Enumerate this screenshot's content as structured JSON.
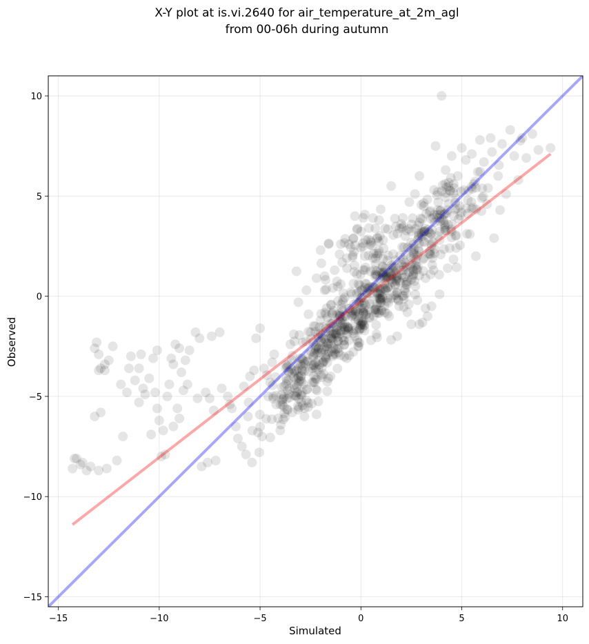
{
  "chart_data": {
    "type": "scatter",
    "title_line1": "X-Y plot at is.vi.2640 for air_temperature_at_2m_agl",
    "title_line2": "from 00-06h during autumn",
    "xlabel": "Simulated",
    "ylabel": "Observed",
    "xlim": [
      -15.5,
      11.0
    ],
    "ylim": [
      -15.5,
      11.0
    ],
    "xticks": [
      -15,
      -10,
      -5,
      0,
      5,
      10
    ],
    "yticks": [
      -15,
      -10,
      -5,
      0,
      5,
      10
    ],
    "xtick_labels": [
      "−15",
      "−10",
      "−5",
      "0",
      "5",
      "10"
    ],
    "ytick_labels": [
      "−15",
      "−10",
      "−5",
      "0",
      "5",
      "10"
    ],
    "grid": true,
    "colors": {
      "points": "#000000",
      "identity_line": "#0000ff",
      "fit_line": "#ff0000"
    },
    "identity_line": {
      "x": [
        -15.5,
        11.0
      ],
      "y": [
        -15.5,
        11.0
      ]
    },
    "fit_line": {
      "x": [
        -14.3,
        9.4
      ],
      "y": [
        -11.4,
        7.1
      ]
    },
    "points": [
      [
        -14.3,
        -8.6
      ],
      [
        -14.1,
        -8.1
      ],
      [
        -13.8,
        -8.3
      ],
      [
        -13.6,
        -8.7
      ],
      [
        -13.4,
        -8.5
      ],
      [
        -14.2,
        -8.1
      ],
      [
        -13.9,
        -8.4
      ],
      [
        -13.1,
        -2.3
      ],
      [
        -13.2,
        -2.6
      ],
      [
        -13.0,
        -2.9
      ],
      [
        -12.9,
        -3.6
      ],
      [
        -12.7,
        -3.4
      ],
      [
        -12.5,
        -3.2
      ],
      [
        -12.3,
        -2.5
      ],
      [
        -13.0,
        -3.7
      ],
      [
        -12.7,
        -3.7
      ],
      [
        -13.2,
        -6.0
      ],
      [
        -12.9,
        -5.8
      ],
      [
        -13.0,
        -8.7
      ],
      [
        -12.6,
        -8.6
      ],
      [
        -12.1,
        -8.2
      ],
      [
        -11.8,
        -7.0
      ],
      [
        -11.9,
        -4.4
      ],
      [
        -11.6,
        -4.8
      ],
      [
        -11.5,
        -3.6
      ],
      [
        -11.4,
        -3.0
      ],
      [
        -11.2,
        -4.2
      ],
      [
        -11.0,
        -3.6
      ],
      [
        -10.9,
        -2.9
      ],
      [
        -10.7,
        -4.9
      ],
      [
        -10.8,
        -4.6
      ],
      [
        -11.0,
        -5.3
      ],
      [
        -10.5,
        -4.1
      ],
      [
        -10.3,
        -3.1
      ],
      [
        -10.1,
        -2.7
      ],
      [
        -10.2,
        -4.8
      ],
      [
        -10.1,
        -5.6
      ],
      [
        -10.0,
        -6.2
      ],
      [
        -9.8,
        -6.7
      ],
      [
        -10.4,
        -6.9
      ],
      [
        -9.9,
        -8.0
      ],
      [
        -9.7,
        -7.9
      ],
      [
        -9.6,
        -5.0
      ],
      [
        -9.5,
        -4.4
      ],
      [
        -9.4,
        -3.1
      ],
      [
        -9.3,
        -3.4
      ],
      [
        -9.2,
        -2.4
      ],
      [
        -9.0,
        -2.6
      ],
      [
        -8.9,
        -3.8
      ],
      [
        -8.8,
        -4.7
      ],
      [
        -9.1,
        -5.6
      ],
      [
        -9.0,
        -6.1
      ],
      [
        -9.3,
        -6.5
      ],
      [
        -8.6,
        -4.4
      ],
      [
        -8.7,
        -3.2
      ],
      [
        -8.5,
        -2.7
      ],
      [
        -8.2,
        -1.8
      ],
      [
        -8.0,
        -2.1
      ],
      [
        -8.1,
        -5.1
      ],
      [
        -7.7,
        -4.8
      ],
      [
        -7.5,
        -5.1
      ],
      [
        -7.3,
        -5.7
      ],
      [
        -7.9,
        -8.5
      ],
      [
        -7.6,
        -8.3
      ],
      [
        -7.2,
        -8.2
      ],
      [
        -7.4,
        -2.0
      ],
      [
        -7.0,
        -1.8
      ],
      [
        -6.9,
        -4.6
      ],
      [
        -6.6,
        -5.0
      ],
      [
        -6.5,
        -5.4
      ],
      [
        -6.4,
        -5.6
      ],
      [
        -6.2,
        -6.5
      ],
      [
        -6.1,
        -7.1
      ],
      [
        -5.9,
        -7.5
      ],
      [
        -5.7,
        -7.9
      ],
      [
        -5.6,
        -6.0
      ],
      [
        -5.8,
        -4.5
      ],
      [
        -5.5,
        -4.0
      ],
      [
        -5.3,
        -3.7
      ],
      [
        -5.2,
        -2.1
      ],
      [
        -5.0,
        -1.6
      ],
      [
        -4.8,
        -3.6
      ],
      [
        -5.1,
        -6.8
      ],
      [
        -4.9,
        -7.0
      ],
      [
        -5.4,
        -8.3
      ],
      [
        -4.6,
        -5.0
      ],
      [
        -4.5,
        -4.3
      ],
      [
        -4.4,
        -3.3
      ],
      [
        -4.3,
        -2.9
      ],
      [
        -4.2,
        -5.4
      ],
      [
        -4.1,
        -6.1
      ],
      [
        -4.0,
        -6.7
      ],
      [
        -3.8,
        -5.0
      ],
      [
        -3.7,
        -4.1
      ],
      [
        -3.6,
        -3.4
      ],
      [
        -3.5,
        -2.4
      ],
      [
        -3.4,
        -5.8
      ],
      [
        -3.3,
        -4.6
      ],
      [
        -3.2,
        -3.7
      ],
      [
        -3.1,
        -0.3
      ],
      [
        -3.0,
        -3.1
      ],
      [
        -2.9,
        -4.8
      ],
      [
        -2.8,
        -6.0
      ],
      [
        -2.7,
        -5.2
      ],
      [
        -2.6,
        -2.9
      ],
      [
        -2.6,
        -0.9
      ],
      [
        -2.5,
        -1.8
      ],
      [
        -2.4,
        -3.6
      ],
      [
        -2.3,
        -4.3
      ],
      [
        -2.2,
        -5.9
      ],
      [
        -2.1,
        -2.6
      ],
      [
        -2.0,
        -1.2
      ],
      [
        -1.9,
        -3.3
      ],
      [
        -1.8,
        0.3
      ],
      [
        -1.7,
        -0.6
      ],
      [
        -1.6,
        -2.1
      ],
      [
        -1.5,
        -4.0
      ],
      [
        -1.4,
        -3.0
      ],
      [
        -1.3,
        1.3
      ],
      [
        -1.2,
        -1.7
      ],
      [
        -1.1,
        -2.6
      ],
      [
        -1.0,
        0.6
      ],
      [
        -0.9,
        -0.3
      ],
      [
        -0.8,
        -1.4
      ],
      [
        -0.7,
        -3.1
      ],
      [
        -0.6,
        2.6
      ],
      [
        -0.5,
        0.2
      ],
      [
        -0.4,
        -0.8
      ],
      [
        -0.3,
        -2.0
      ],
      [
        -0.2,
        1.1
      ],
      [
        -0.1,
        -0.3
      ],
      [
        0.0,
        -0.6
      ],
      [
        0.1,
        -1.4
      ],
      [
        0.2,
        2.0
      ],
      [
        0.3,
        0.2
      ],
      [
        0.4,
        -0.2
      ],
      [
        0.5,
        -2.2
      ],
      [
        0.6,
        3.9
      ],
      [
        0.7,
        1.0
      ],
      [
        0.8,
        0.1
      ],
      [
        0.9,
        -0.1
      ],
      [
        1.0,
        -0.3
      ],
      [
        1.1,
        2.8
      ],
      [
        1.2,
        0.4
      ],
      [
        1.3,
        -0.1
      ],
      [
        1.4,
        -1.0
      ],
      [
        1.5,
        5.5
      ],
      [
        1.6,
        2.1
      ],
      [
        1.7,
        0.6
      ],
      [
        1.8,
        0.2
      ],
      [
        1.9,
        -0.5
      ],
      [
        2.0,
        3.6
      ],
      [
        2.1,
        1.3
      ],
      [
        2.2,
        0.4
      ],
      [
        2.3,
        -0.8
      ],
      [
        2.4,
        4.7
      ],
      [
        2.5,
        2.4
      ],
      [
        2.6,
        1.1
      ],
      [
        2.7,
        0.5
      ],
      [
        2.8,
        -0.2
      ],
      [
        2.9,
        6.0
      ],
      [
        3.0,
        3.2
      ],
      [
        3.1,
        1.9
      ],
      [
        3.2,
        0.9
      ],
      [
        3.3,
        -1.0
      ],
      [
        3.4,
        4.2
      ],
      [
        3.5,
        2.6
      ],
      [
        3.6,
        1.3
      ],
      [
        3.7,
        7.5
      ],
      [
        3.8,
        5.2
      ],
      [
        3.9,
        2.8
      ],
      [
        4.0,
        10.0
      ],
      [
        4.1,
        3.8
      ],
      [
        4.2,
        6.3
      ],
      [
        4.3,
        4.3
      ],
      [
        4.4,
        2.4
      ],
      [
        4.5,
        7.0
      ],
      [
        4.6,
        5.6
      ],
      [
        4.7,
        3.0
      ],
      [
        4.8,
        6.0
      ],
      [
        4.9,
        4.5
      ],
      [
        5.0,
        7.4
      ],
      [
        5.1,
        5.3
      ],
      [
        5.2,
        6.8
      ],
      [
        5.3,
        4.8
      ],
      [
        5.4,
        3.1
      ],
      [
        5.5,
        7.1
      ],
      [
        5.6,
        5.6
      ],
      [
        5.7,
        2.0
      ],
      [
        5.8,
        6.2
      ],
      [
        5.9,
        7.8
      ],
      [
        6.0,
        4.9
      ],
      [
        6.1,
        6.7
      ],
      [
        6.3,
        5.4
      ],
      [
        6.5,
        7.2
      ],
      [
        6.6,
        2.9
      ],
      [
        6.8,
        6.0
      ],
      [
        7.0,
        7.6
      ],
      [
        7.2,
        5.1
      ],
      [
        7.4,
        8.3
      ],
      [
        7.6,
        7.0
      ],
      [
        7.8,
        5.8
      ],
      [
        8.0,
        7.9
      ],
      [
        8.2,
        6.9
      ],
      [
        8.5,
        8.1
      ],
      [
        8.8,
        7.3
      ],
      [
        9.4,
        7.4
      ],
      [
        -0.7,
        1.9
      ],
      [
        -1.0,
        2.6
      ],
      [
        -0.3,
        4.0
      ],
      [
        0.9,
        3.8
      ],
      [
        0.4,
        3.4
      ],
      [
        -1.6,
        2.6
      ],
      [
        -2.0,
        2.3
      ],
      [
        -1.8,
        1.0
      ],
      [
        -2.7,
        0.3
      ],
      [
        -2.2,
        0.9
      ],
      [
        2.9,
        -1.4
      ],
      [
        3.2,
        -0.6
      ],
      [
        3.9,
        0.1
      ],
      [
        4.3,
        1.4
      ],
      [
        3.5,
        -0.5
      ],
      [
        2.5,
        -1.4
      ],
      [
        1.8,
        -2.0
      ]
    ],
    "dense_clusters": [
      {
        "cx": 1.2,
        "cy": 0.5,
        "sx": 1.3,
        "sy": 1.3,
        "n": 220,
        "rho": 0.75
      },
      {
        "cx": -1.2,
        "cy": -1.9,
        "sx": 1.2,
        "sy": 1.1,
        "n": 170,
        "rho": 0.7
      },
      {
        "cx": -3.0,
        "cy": -4.4,
        "sx": 0.9,
        "sy": 1.0,
        "n": 110,
        "rho": 0.6
      },
      {
        "cx": 3.8,
        "cy": 3.6,
        "sx": 1.3,
        "sy": 1.5,
        "n": 130,
        "rho": 0.7
      },
      {
        "cx": 0.3,
        "cy": 2.5,
        "sx": 1.2,
        "sy": 1.0,
        "n": 60,
        "rho": 0.5
      }
    ]
  }
}
